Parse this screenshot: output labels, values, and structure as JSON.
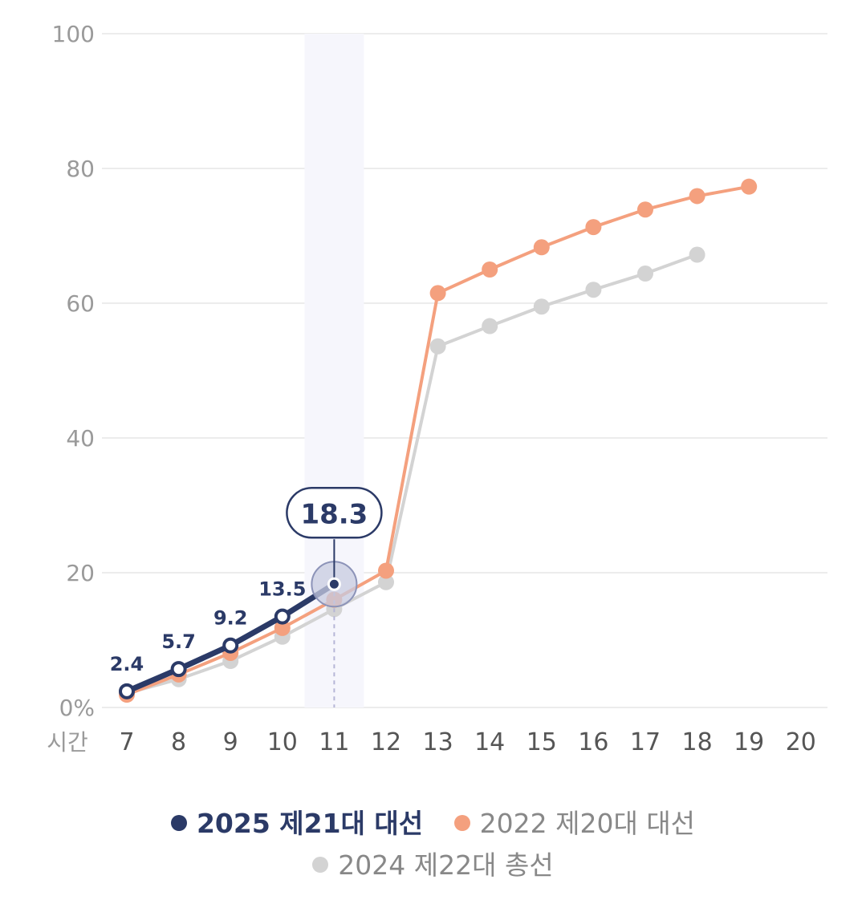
{
  "chart_data": {
    "type": "line",
    "x": [
      7,
      8,
      9,
      10,
      11,
      12,
      13,
      14,
      15,
      16,
      17,
      18,
      19,
      20
    ],
    "xunit": "시간",
    "yticks": [
      "0%",
      "20",
      "40",
      "60",
      "80",
      "100"
    ],
    "ytick_values": [
      0,
      20,
      40,
      60,
      80,
      100
    ],
    "ylim": [
      0,
      100
    ],
    "highlight_x": 11,
    "series": [
      {
        "name": "2024 제22대 총선",
        "color": "#d3d3d3",
        "x": [
          7,
          8,
          9,
          10,
          11,
          12,
          13,
          14,
          15,
          16,
          17,
          18
        ],
        "values": [
          2.1,
          4.2,
          6.9,
          10.5,
          14.6,
          18.6,
          53.6,
          56.6,
          59.5,
          62.0,
          64.4,
          67.2
        ]
      },
      {
        "name": "2022 제20대 대선",
        "color": "#f4a07e",
        "x": [
          7,
          8,
          9,
          10,
          11,
          12,
          13,
          14,
          15,
          16,
          17,
          18,
          19
        ],
        "values": [
          1.9,
          4.9,
          8.1,
          11.8,
          16.0,
          20.3,
          61.5,
          65.0,
          68.3,
          71.3,
          73.9,
          75.9,
          77.3
        ]
      },
      {
        "name": "2025 제21대 대선",
        "color": "#2b3a67",
        "x": [
          7,
          8,
          9,
          10,
          11
        ],
        "values": [
          2.4,
          5.7,
          9.2,
          13.5,
          18.3
        ],
        "labels": [
          "2.4",
          "5.7",
          "9.2",
          "13.5",
          ""
        ],
        "callout": "18.3"
      }
    ],
    "legend": [
      {
        "name": "2025 제21대 대선",
        "color": "#2b3a67",
        "primary": true
      },
      {
        "name": "2022 제20대 대선",
        "color": "#f4a07e",
        "primary": false
      },
      {
        "name": "2024 제22대 총선",
        "color": "#d3d3d3",
        "primary": false
      }
    ],
    "grid": true
  }
}
